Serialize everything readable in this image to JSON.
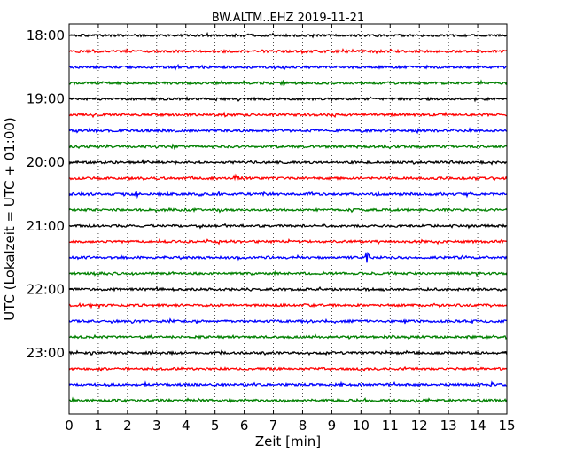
{
  "chart_data": {
    "type": "line",
    "title": "BW.ALTM..EHZ 2019-11-21",
    "xlabel": "Zeit  [min]",
    "ylabel": "UTC (Lokalzeit = UTC + 01:00)",
    "xlim": [
      0,
      15
    ],
    "x_ticks": [
      "0",
      "1",
      "2",
      "3",
      "4",
      "5",
      "6",
      "7",
      "8",
      "9",
      "10",
      "11",
      "12",
      "13",
      "14",
      "15"
    ],
    "y_ticks": [
      "18:00",
      "19:00",
      "20:00",
      "21:00",
      "22:00",
      "23:00"
    ],
    "grid": "vertical dotted at each minute",
    "trace_colors": [
      "#000000",
      "#ff0000",
      "#0000ff",
      "#008000"
    ],
    "trace_interval_min": 15,
    "traces": [
      {
        "start": "18:00",
        "color": "#000000"
      },
      {
        "start": "18:15",
        "color": "#ff0000"
      },
      {
        "start": "18:30",
        "color": "#0000ff"
      },
      {
        "start": "18:45",
        "color": "#008000"
      },
      {
        "start": "19:00",
        "color": "#000000"
      },
      {
        "start": "19:15",
        "color": "#ff0000"
      },
      {
        "start": "19:30",
        "color": "#0000ff"
      },
      {
        "start": "19:45",
        "color": "#008000"
      },
      {
        "start": "20:00",
        "color": "#000000"
      },
      {
        "start": "20:15",
        "color": "#ff0000"
      },
      {
        "start": "20:30",
        "color": "#0000ff"
      },
      {
        "start": "20:45",
        "color": "#008000"
      },
      {
        "start": "21:00",
        "color": "#000000"
      },
      {
        "start": "21:15",
        "color": "#ff0000"
      },
      {
        "start": "21:30",
        "color": "#0000ff"
      },
      {
        "start": "21:45",
        "color": "#008000"
      },
      {
        "start": "22:00",
        "color": "#000000"
      },
      {
        "start": "22:15",
        "color": "#ff0000"
      },
      {
        "start": "22:30",
        "color": "#0000ff"
      },
      {
        "start": "22:45",
        "color": "#008000"
      },
      {
        "start": "23:00",
        "color": "#000000"
      },
      {
        "start": "23:15",
        "color": "#ff0000"
      },
      {
        "start": "23:30",
        "color": "#0000ff"
      },
      {
        "start": "23:45",
        "color": "#008000"
      }
    ],
    "events": [
      {
        "trace": "18:45",
        "minute": 7.3,
        "amplitude": 0.5
      },
      {
        "trace": "20:15",
        "minute": 5.7,
        "amplitude": 0.45
      },
      {
        "trace": "20:30",
        "minute": 2.3,
        "amplitude": 0.45
      },
      {
        "trace": "20:45",
        "minute": 3.0,
        "amplitude": 0.4
      },
      {
        "trace": "21:30",
        "minute": 10.2,
        "amplitude": 0.8
      },
      {
        "trace": "23:30",
        "minute": 14.5,
        "amplitude": 0.3
      }
    ]
  }
}
